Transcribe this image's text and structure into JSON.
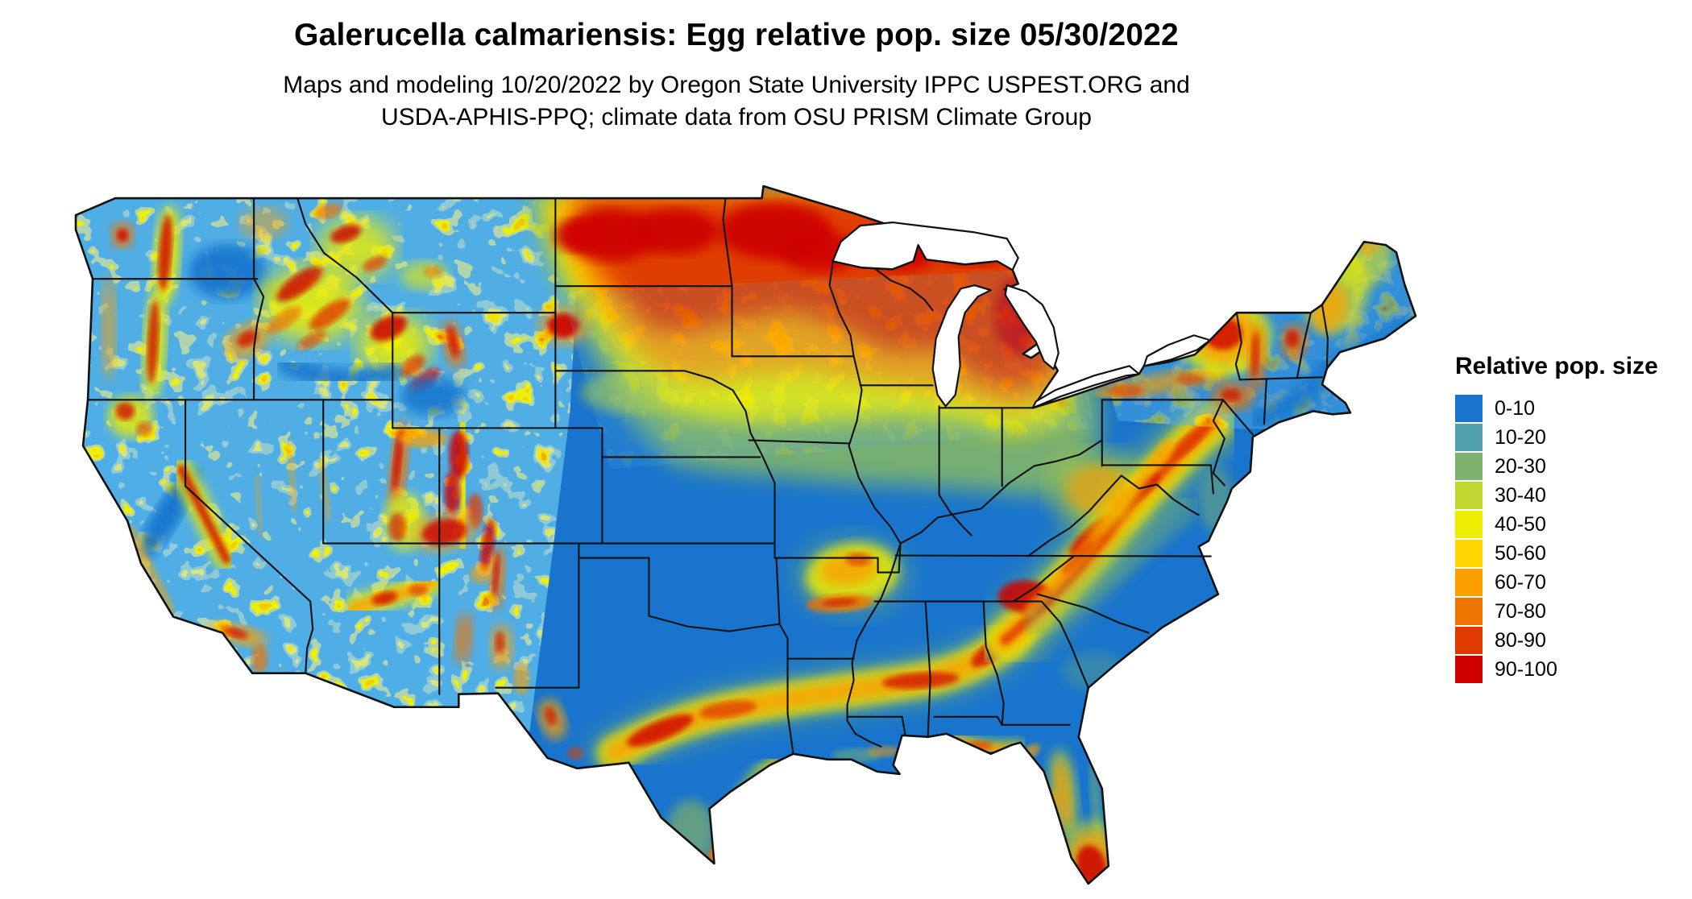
{
  "title": "Galerucella calmariensis: Egg relative pop. size 05/30/2022",
  "subtitle": {
    "line1": "Maps and modeling 10/20/2022 by Oregon State University IPPC USPEST.ORG and",
    "line2": "USDA-APHIS-PPQ; climate data from OSU PRISM Climate Group"
  },
  "legend": {
    "title": "Relative pop. size",
    "bins": [
      {
        "label": "0-10",
        "color": "#1874CD"
      },
      {
        "label": "10-20",
        "color": "#4F9FAD"
      },
      {
        "label": "20-30",
        "color": "#7DB26E"
      },
      {
        "label": "30-40",
        "color": "#C0D731"
      },
      {
        "label": "40-50",
        "color": "#EDED00"
      },
      {
        "label": "50-60",
        "color": "#FFD700"
      },
      {
        "label": "60-70",
        "color": "#FCA000"
      },
      {
        "label": "70-80",
        "color": "#EF7500"
      },
      {
        "label": "80-90",
        "color": "#DF3B00"
      },
      {
        "label": "90-100",
        "color": "#CE0000"
      }
    ]
  }
}
